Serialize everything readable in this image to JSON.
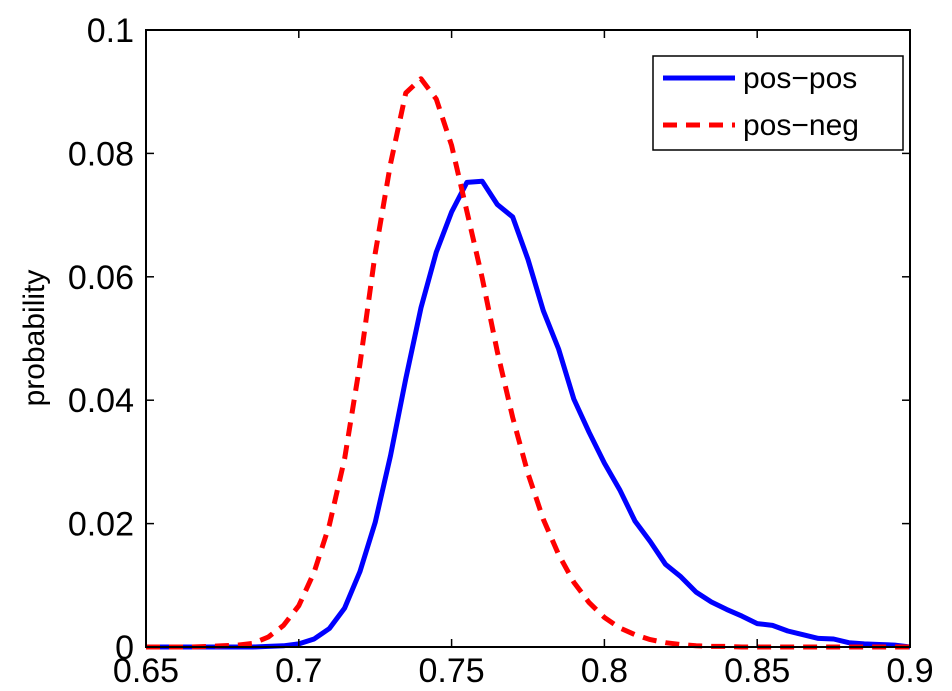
{
  "chart_data": {
    "type": "line",
    "title": "",
    "xlabel": "",
    "ylabel": "probability",
    "xlim": [
      0.65,
      0.9
    ],
    "ylim": [
      0,
      0.1
    ],
    "x_ticks": [
      0.65,
      0.7,
      0.75,
      0.8,
      0.85,
      0.9
    ],
    "x_tick_labels": [
      "0.65",
      "0.7",
      "0.75",
      "0.8",
      "0.85",
      "0.9"
    ],
    "y_ticks": [
      0,
      0.02,
      0.04,
      0.06,
      0.08,
      0.1
    ],
    "y_tick_labels": [
      "0",
      "0.02",
      "0.04",
      "0.06",
      "0.08",
      "0.1"
    ],
    "grid": false,
    "legend_position": "top-right",
    "series": [
      {
        "name": "pos−pos",
        "color": "#0000ff",
        "style": "solid",
        "x": [
          0.65,
          0.655,
          0.66,
          0.665,
          0.67,
          0.675,
          0.68,
          0.685,
          0.69,
          0.695,
          0.7,
          0.705,
          0.71,
          0.715,
          0.72,
          0.725,
          0.73,
          0.735,
          0.74,
          0.745,
          0.75,
          0.755,
          0.76,
          0.765,
          0.77,
          0.775,
          0.78,
          0.785,
          0.79,
          0.795,
          0.8,
          0.805,
          0.81,
          0.815,
          0.82,
          0.825,
          0.83,
          0.835,
          0.84,
          0.845,
          0.85,
          0.855,
          0.86,
          0.865,
          0.87,
          0.875,
          0.88,
          0.885,
          0.89,
          0.895,
          0.9
        ],
        "y": [
          0,
          0,
          0,
          0,
          0,
          0,
          0,
          0,
          0.0001,
          0.0002,
          0.0005,
          0.0013,
          0.003,
          0.0063,
          0.0122,
          0.0202,
          0.031,
          0.0435,
          0.055,
          0.064,
          0.0705,
          0.0753,
          0.0755,
          0.0717,
          0.0697,
          0.0628,
          0.0545,
          0.0483,
          0.0402,
          0.0348,
          0.0298,
          0.0255,
          0.0204,
          0.0171,
          0.0134,
          0.0114,
          0.0089,
          0.0073,
          0.0061,
          0.005,
          0.0038,
          0.0035,
          0.0026,
          0.002,
          0.0014,
          0.0013,
          0.0007,
          0.0005,
          0.0004,
          0.0003,
          0
        ]
      },
      {
        "name": "pos−neg",
        "color": "#ff0000",
        "style": "dashed",
        "x": [
          0.65,
          0.655,
          0.66,
          0.665,
          0.67,
          0.675,
          0.68,
          0.685,
          0.69,
          0.695,
          0.7,
          0.705,
          0.71,
          0.715,
          0.72,
          0.725,
          0.73,
          0.735,
          0.74,
          0.745,
          0.75,
          0.755,
          0.76,
          0.765,
          0.77,
          0.775,
          0.78,
          0.785,
          0.79,
          0.795,
          0.8,
          0.805,
          0.81,
          0.815,
          0.82,
          0.825,
          0.83,
          0.835,
          0.84,
          0.845,
          0.85,
          0.855,
          0.86,
          0.865,
          0.87,
          0.875,
          0.88,
          0.885,
          0.89,
          0.895,
          0.9
        ],
        "y": [
          0,
          0,
          0,
          0,
          0.0001,
          0.0002,
          0.0003,
          0.0006,
          0.0016,
          0.0035,
          0.0067,
          0.0121,
          0.0198,
          0.0305,
          0.0458,
          0.0638,
          0.0783,
          0.0898,
          0.0921,
          0.0888,
          0.0813,
          0.0706,
          0.0598,
          0.0478,
          0.0372,
          0.0281,
          0.0207,
          0.015,
          0.0105,
          0.0072,
          0.0048,
          0.0031,
          0.002,
          0.0012,
          0.0007,
          0.0004,
          0.0002,
          0.0001,
          0.0001,
          0,
          0,
          0,
          0,
          0,
          0,
          0,
          0,
          0,
          0,
          0,
          0
        ]
      }
    ]
  }
}
